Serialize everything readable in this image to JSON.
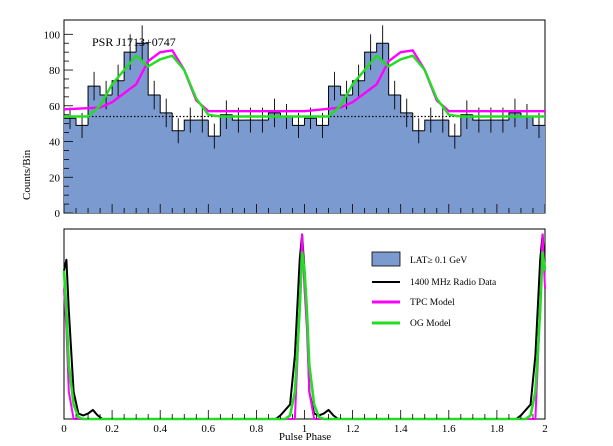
{
  "chart_data": [
    {
      "type": "bar",
      "annotation": "PSR J1713+0747",
      "ylabel": "Counts/Bin",
      "xlim": [
        0,
        2
      ],
      "ylim": [
        0,
        108
      ],
      "yticks": [
        0,
        20,
        40,
        60,
        80,
        100
      ],
      "bin_width": 0.05,
      "bin_start": 0,
      "counts": [
        53,
        49,
        71,
        66,
        74,
        90,
        95,
        66,
        56,
        46,
        52,
        52,
        43,
        55,
        52,
        52,
        52,
        56,
        54,
        49,
        53,
        49,
        71,
        66,
        74,
        90,
        95,
        66,
        56,
        46,
        52,
        52,
        43,
        55,
        52,
        52,
        52,
        56,
        54,
        49
      ],
      "errors": [
        6,
        7,
        8,
        8,
        9,
        10,
        10,
        8,
        8,
        7,
        7,
        7,
        7,
        8,
        7,
        7,
        7,
        8,
        7,
        7,
        6,
        7,
        8,
        8,
        9,
        10,
        10,
        8,
        8,
        7,
        7,
        7,
        7,
        8,
        7,
        7,
        7,
        8,
        7,
        7
      ],
      "background_level": 54,
      "series": [
        {
          "name": "TPC Model",
          "color": "#ff00ff",
          "x": [
            0,
            0.15,
            0.2,
            0.3,
            0.35,
            0.4,
            0.45,
            0.5,
            0.55,
            0.6,
            1.0,
            1.15,
            1.2,
            1.3,
            1.35,
            1.4,
            1.45,
            1.5,
            1.55,
            1.6,
            2.0
          ],
          "y": [
            58,
            59,
            62,
            72,
            85,
            90,
            91,
            80,
            63,
            57,
            57,
            59,
            62,
            72,
            85,
            90,
            91,
            80,
            63,
            57,
            57
          ]
        },
        {
          "name": "OG Model",
          "color": "#22dd22",
          "x": [
            0,
            0.1,
            0.15,
            0.2,
            0.3,
            0.35,
            0.4,
            0.45,
            0.5,
            0.55,
            0.6,
            0.65,
            1.0,
            1.1,
            1.15,
            1.2,
            1.3,
            1.35,
            1.4,
            1.45,
            1.5,
            1.55,
            1.6,
            1.65,
            2.0
          ],
          "y": [
            54,
            54,
            60,
            72,
            88,
            82,
            86,
            88,
            80,
            64,
            55,
            54,
            54,
            54,
            60,
            72,
            88,
            82,
            86,
            88,
            80,
            64,
            55,
            54,
            54
          ]
        }
      ]
    },
    {
      "type": "line",
      "xlabel": "Pulse Phase",
      "xlim": [
        0,
        2
      ],
      "xticks": [
        "0",
        "0.2",
        "0.4",
        "0.6",
        "0.8",
        "1",
        "1.2",
        "1.4",
        "1.6",
        "1.8",
        "2"
      ],
      "ylim": [
        0,
        1.05
      ],
      "legend": {
        "position": "top-right",
        "entries": [
          "LAT≥ 0.1 GeV",
          "1400 MHz Radio Data",
          "TPC Model",
          "OG Model"
        ]
      },
      "series": [
        {
          "name": "1400 MHz Radio Data",
          "color": "#000000",
          "x": [
            0,
            0.01,
            0.02,
            0.04,
            0.06,
            0.08,
            0.1,
            0.12,
            0.14,
            0.16,
            0.88,
            0.9,
            0.92,
            0.94,
            0.96,
            0.98,
            0.99,
            1.0,
            1.01,
            1.02,
            1.04,
            1.06,
            1.08,
            1.1,
            1.12,
            1.14,
            1.16,
            1.88,
            1.9,
            1.92,
            1.94,
            1.96,
            1.98,
            1.99,
            2.0
          ],
          "y": [
            0.82,
            0.88,
            0.6,
            0.15,
            0.03,
            0.02,
            0.03,
            0.05,
            0.02,
            0.0,
            0.0,
            0.02,
            0.05,
            0.08,
            0.35,
            0.88,
            1.02,
            0.82,
            0.6,
            0.15,
            0.03,
            0.02,
            0.03,
            0.05,
            0.02,
            0.0,
            0.0,
            0.0,
            0.02,
            0.05,
            0.08,
            0.35,
            0.88,
            1.02,
            0.82
          ]
        },
        {
          "name": "TPC Model",
          "color": "#ff00ff",
          "x": [
            0,
            0.01,
            0.02,
            0.04,
            0.06,
            0.94,
            0.96,
            0.98,
            0.99,
            1.0,
            1.01,
            1.02,
            1.04,
            1.06,
            1.94,
            1.96,
            1.98,
            1.99,
            2.0
          ],
          "y": [
            0.72,
            0.5,
            0.15,
            0.0,
            0.0,
            0.0,
            0.0,
            0.62,
            1.02,
            0.72,
            0.5,
            0.15,
            0.0,
            0.0,
            0.0,
            0.0,
            0.62,
            1.02,
            0.72
          ]
        },
        {
          "name": "OG Model",
          "color": "#22dd22",
          "x": [
            0,
            0.01,
            0.02,
            0.04,
            0.06,
            0.08,
            0.92,
            0.94,
            0.96,
            0.98,
            0.99,
            1.0,
            1.01,
            1.02,
            1.04,
            1.06,
            1.08,
            1.92,
            1.94,
            1.96,
            1.98,
            1.99,
            2.0
          ],
          "y": [
            0.82,
            0.6,
            0.3,
            0.08,
            0.01,
            0.0,
            0.0,
            0.02,
            0.15,
            0.6,
            0.92,
            0.82,
            0.6,
            0.3,
            0.08,
            0.01,
            0.0,
            0.0,
            0.02,
            0.15,
            0.6,
            0.92,
            0.82
          ]
        }
      ]
    }
  ],
  "legend_items": {
    "lat": "LAT≥ 0.1 GeV",
    "radio": "1400 MHz Radio Data",
    "tpc": "TPC Model",
    "og": "OG Model"
  },
  "colors": {
    "histogram_fill": "#7b9bd0",
    "radio": "#000000",
    "tpc": "#ff00ff",
    "og": "#22dd22"
  }
}
